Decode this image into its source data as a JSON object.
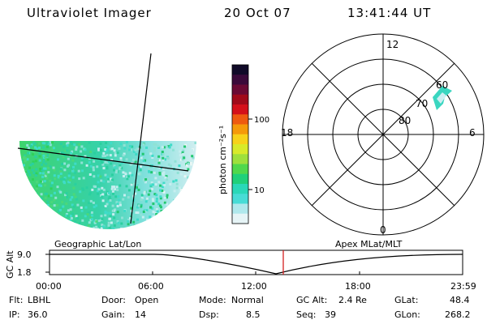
{
  "header": {
    "instrument": "Ultraviolet Imager",
    "date": "20 Oct 07",
    "time": "13:41:44 UT"
  },
  "colorbar": {
    "label": "photon cm⁻²s⁻¹",
    "ticks": [
      "100",
      "10"
    ],
    "colors": [
      "#100a28",
      "#3a0a3a",
      "#6a0a34",
      "#a00a1a",
      "#d4101a",
      "#ee5a10",
      "#f59a0a",
      "#f7d21a",
      "#d8ea2a",
      "#9ee03c",
      "#50d84c",
      "#20d07a",
      "#2ad8b8",
      "#48dcd6",
      "#b0e8ec",
      "#e6f4f6"
    ]
  },
  "polar_plot": {
    "label": "Apex MLat/MLT",
    "mlt_labels": [
      "12",
      "18",
      "6",
      "0"
    ],
    "lat_labels": [
      "60",
      "70",
      "80"
    ]
  },
  "map_plot": {
    "label": "Geographic Lat/Lon"
  },
  "timeline": {
    "ylabel": "GC Alt",
    "yticks": [
      "9.0",
      "1.8"
    ],
    "xticks": [
      "00:00",
      "06:00",
      "12:00",
      "18:00",
      "23:59"
    ],
    "marker_color": "#d42020"
  },
  "info": {
    "flt_label": "Flt:",
    "flt_value": "LBHL",
    "ip_label": "IP:",
    "ip_value": "36.0",
    "door_label": "Door:",
    "door_value": "Open",
    "gain_label": "Gain:",
    "gain_value": "14",
    "mode_label": "Mode:",
    "mode_value": "Normal",
    "dsp_label": "Dsp:",
    "dsp_value": "8.5",
    "gcalt_label": "GC Alt:",
    "gcalt_value": "2.4 Re",
    "seq_label": "Seq:",
    "seq_value": "39",
    "glat_label": "GLat:",
    "glat_value": "48.4",
    "glon_label": "GLon:",
    "glon_value": "268.2"
  }
}
